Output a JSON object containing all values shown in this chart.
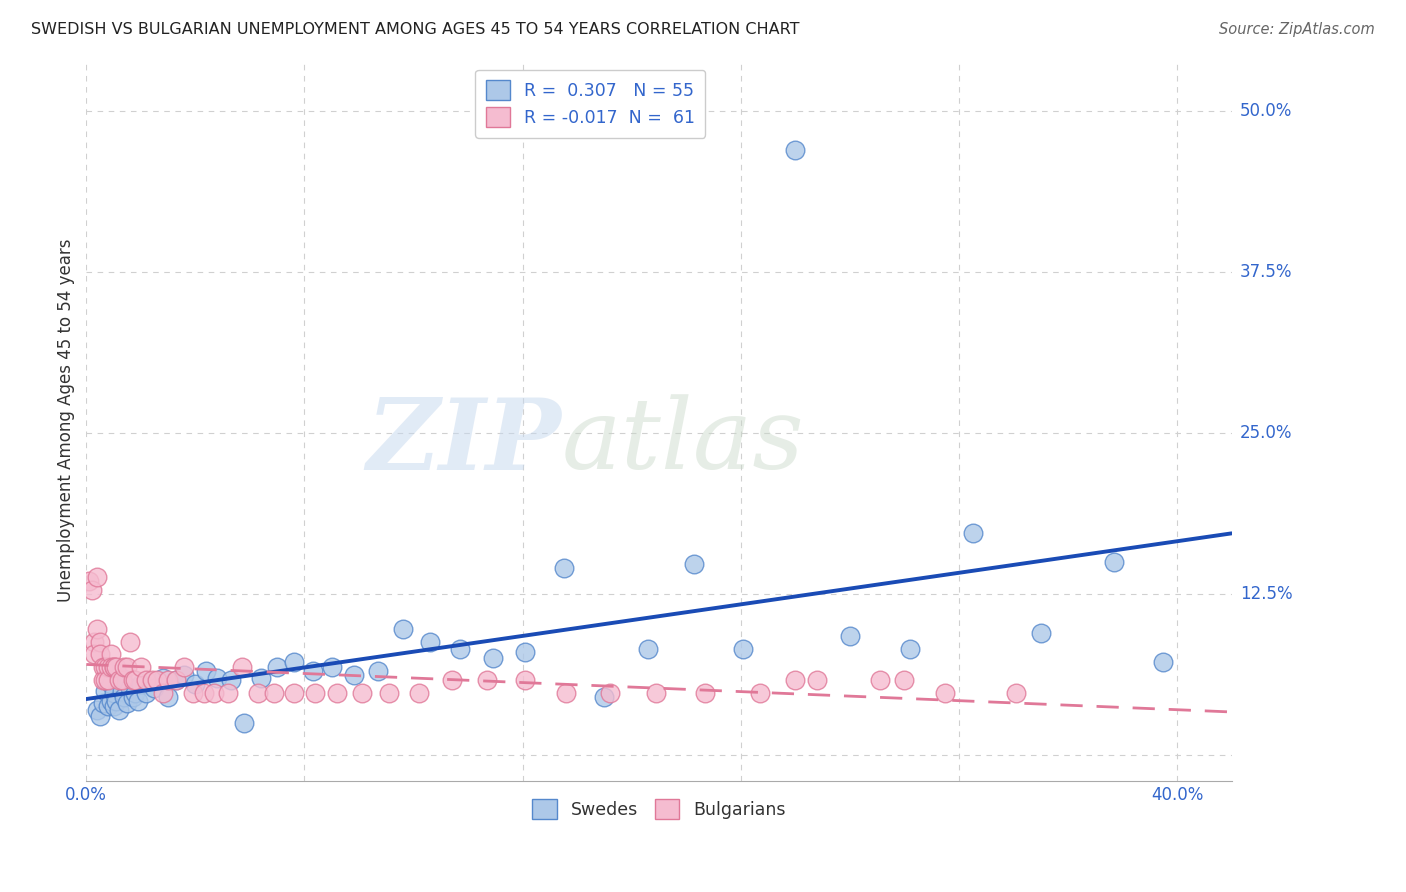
{
  "title": "SWEDISH VS BULGARIAN UNEMPLOYMENT AMONG AGES 45 TO 54 YEARS CORRELATION CHART",
  "source": "Source: ZipAtlas.com",
  "ylabel": "Unemployment Among Ages 45 to 54 years",
  "xlim": [
    0.0,
    0.42
  ],
  "ylim": [
    -0.02,
    0.54
  ],
  "yticks": [
    0.0,
    0.125,
    0.25,
    0.375,
    0.5
  ],
  "ytick_labels": [
    "",
    "12.5%",
    "25.0%",
    "37.5%",
    "50.0%"
  ],
  "xticks": [
    0.0,
    0.08,
    0.16,
    0.24,
    0.32,
    0.4
  ],
  "xtick_labels": [
    "0.0%",
    "",
    "",
    "",
    "",
    "40.0%"
  ],
  "grid_color": "#d0d0d0",
  "bg_color": "#ffffff",
  "swedes_color": "#adc8e8",
  "swedes_edge_color": "#5588cc",
  "bulgarians_color": "#f5bcd0",
  "bulgarians_edge_color": "#e07898",
  "swedes_line_color": "#1a4bb5",
  "bulgarians_line_color": "#e07898",
  "label_color": "#3366cc",
  "R_swedes": 0.307,
  "N_swedes": 55,
  "R_bulgarians": -0.017,
  "N_bulgarians": 61,
  "watermark_zip": "ZIP",
  "watermark_atlas": "atlas",
  "swedes_x": [
    0.004,
    0.005,
    0.006,
    0.007,
    0.008,
    0.009,
    0.009,
    0.01,
    0.01,
    0.011,
    0.012,
    0.013,
    0.013,
    0.014,
    0.015,
    0.016,
    0.017,
    0.018,
    0.019,
    0.02,
    0.022,
    0.025,
    0.028,
    0.03,
    0.033,
    0.036,
    0.04,
    0.044,
    0.048,
    0.053,
    0.058,
    0.064,
    0.07,
    0.076,
    0.083,
    0.09,
    0.098,
    0.107,
    0.116,
    0.126,
    0.137,
    0.149,
    0.161,
    0.175,
    0.19,
    0.206,
    0.223,
    0.241,
    0.26,
    0.28,
    0.302,
    0.325,
    0.35,
    0.377,
    0.395
  ],
  "swedes_y": [
    0.035,
    0.03,
    0.04,
    0.05,
    0.038,
    0.042,
    0.055,
    0.038,
    0.048,
    0.042,
    0.035,
    0.05,
    0.06,
    0.045,
    0.04,
    0.052,
    0.045,
    0.048,
    0.042,
    0.055,
    0.048,
    0.052,
    0.06,
    0.045,
    0.058,
    0.062,
    0.055,
    0.065,
    0.06,
    0.058,
    0.025,
    0.06,
    0.068,
    0.072,
    0.065,
    0.068,
    0.062,
    0.065,
    0.098,
    0.088,
    0.082,
    0.075,
    0.08,
    0.145,
    0.045,
    0.082,
    0.148,
    0.082,
    0.47,
    0.092,
    0.082,
    0.172,
    0.095,
    0.15,
    0.072
  ],
  "bulgarians_x": [
    0.001,
    0.002,
    0.003,
    0.003,
    0.004,
    0.004,
    0.005,
    0.005,
    0.006,
    0.006,
    0.007,
    0.007,
    0.008,
    0.008,
    0.009,
    0.009,
    0.01,
    0.01,
    0.011,
    0.012,
    0.013,
    0.014,
    0.015,
    0.016,
    0.017,
    0.018,
    0.02,
    0.022,
    0.024,
    0.026,
    0.028,
    0.03,
    0.033,
    0.036,
    0.039,
    0.043,
    0.047,
    0.052,
    0.057,
    0.063,
    0.069,
    0.076,
    0.084,
    0.092,
    0.101,
    0.111,
    0.122,
    0.134,
    0.147,
    0.161,
    0.176,
    0.192,
    0.209,
    0.227,
    0.247,
    0.268,
    0.291,
    0.315,
    0.341,
    0.3,
    0.26
  ],
  "bulgarians_y": [
    0.135,
    0.128,
    0.088,
    0.078,
    0.138,
    0.098,
    0.088,
    0.078,
    0.068,
    0.058,
    0.068,
    0.058,
    0.068,
    0.058,
    0.078,
    0.068,
    0.068,
    0.068,
    0.068,
    0.058,
    0.058,
    0.068,
    0.068,
    0.088,
    0.058,
    0.058,
    0.068,
    0.058,
    0.058,
    0.058,
    0.048,
    0.058,
    0.058,
    0.068,
    0.048,
    0.048,
    0.048,
    0.048,
    0.068,
    0.048,
    0.048,
    0.048,
    0.048,
    0.048,
    0.048,
    0.048,
    0.048,
    0.058,
    0.058,
    0.058,
    0.048,
    0.048,
    0.048,
    0.048,
    0.048,
    0.058,
    0.058,
    0.048,
    0.048,
    0.058,
    0.058
  ]
}
